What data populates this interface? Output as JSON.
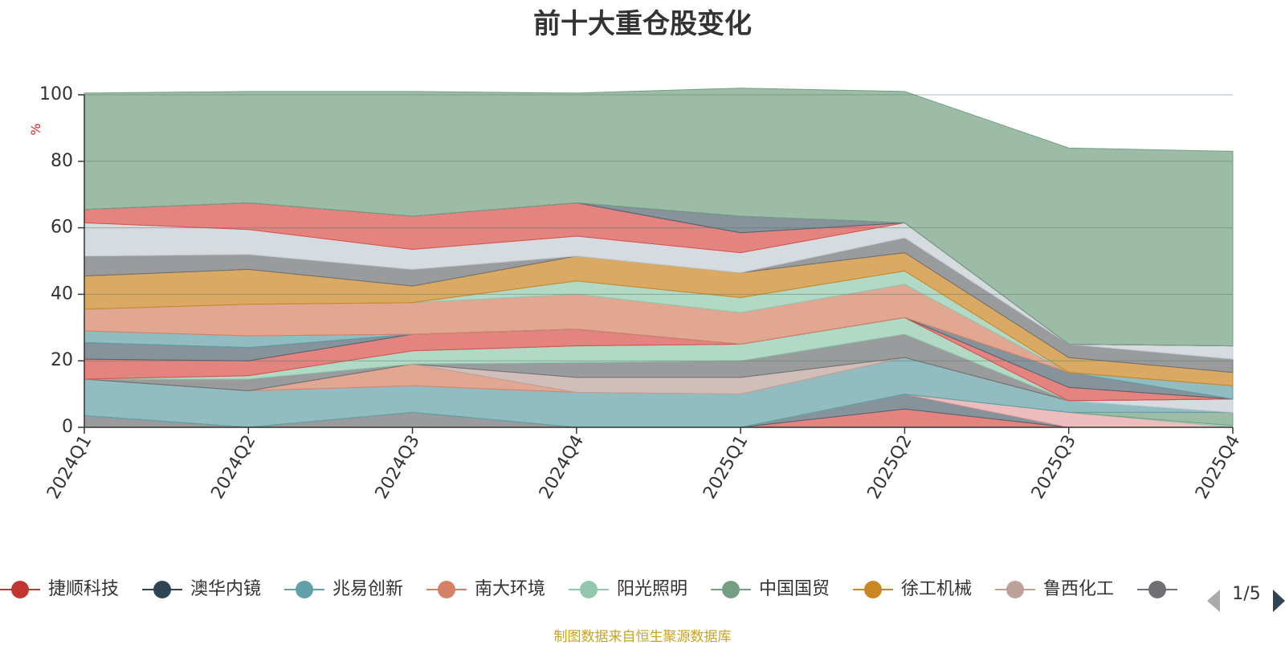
{
  "chart_data": {
    "type": "area",
    "title": "前十大重仓股变化",
    "ylabel": "%",
    "ylim": [
      0,
      100
    ],
    "yticks": [
      0,
      20,
      40,
      60,
      80,
      100
    ],
    "categories": [
      "2024Q1",
      "2024Q2",
      "2024Q3",
      "2024Q4",
      "2025Q1",
      "2025Q2",
      "2025Q3",
      "2025Q4"
    ],
    "grid": true,
    "legend_position": "bottom",
    "legend_page": "1/5",
    "series": [
      {
        "name": "",
        "color": "#6e7074",
        "values": [
          3.5,
          0,
          4.5,
          0,
          0,
          0,
          0,
          0
        ]
      },
      {
        "name": "",
        "color": "#d7504b",
        "values": [
          0,
          0,
          0,
          0,
          0,
          5.5,
          0,
          0
        ]
      },
      {
        "name": "",
        "color": "#546570",
        "values": [
          0,
          0,
          0,
          0,
          0,
          4.5,
          0,
          0
        ]
      },
      {
        "name": "",
        "color": "#e6a0a0",
        "values": [
          0,
          0,
          0,
          0,
          0,
          0,
          4.5,
          0
        ]
      },
      {
        "name": "",
        "color": "#91c7ae",
        "values": [
          0,
          0,
          0,
          0,
          0,
          0,
          0,
          0.5
        ]
      },
      {
        "name": "",
        "color": "#749f83",
        "values": [
          0,
          0,
          0,
          0,
          0,
          0,
          0,
          4.0
        ]
      },
      {
        "name": "",
        "color": "#61a0a8",
        "values": [
          11,
          11,
          8,
          10.5,
          10,
          11,
          3.5,
          0
        ]
      },
      {
        "name": "",
        "color": "#c4ccd3",
        "values": [
          0,
          0,
          0,
          0,
          0,
          0,
          0,
          4.0
        ]
      },
      {
        "name": "",
        "color": "#d48265",
        "values": [
          0,
          0,
          6.5,
          0,
          0,
          0,
          0,
          0
        ]
      },
      {
        "name": "",
        "color": "#bda29a",
        "values": [
          0,
          0,
          0,
          4.5,
          5,
          0,
          0,
          0
        ]
      },
      {
        "name": "",
        "color": "#6e7074",
        "values": [
          0,
          3.5,
          0,
          4.5,
          5,
          7,
          0,
          0
        ]
      },
      {
        "name": "",
        "color": "#91c7ae",
        "values": [
          0,
          1,
          4,
          5,
          5,
          5,
          0,
          0
        ]
      },
      {
        "name": "",
        "color": "#d7504b",
        "values": [
          6,
          4.5,
          5,
          5,
          0,
          0,
          4,
          0
        ]
      },
      {
        "name": "",
        "color": "#546570",
        "values": [
          5,
          4,
          0,
          0,
          0,
          0,
          4.5,
          0
        ]
      },
      {
        "name": "",
        "color": "#61a0a8",
        "values": [
          3.5,
          3.5,
          0,
          0,
          0,
          0,
          0,
          4.0
        ]
      },
      {
        "name": "",
        "color": "#d48265",
        "values": [
          6.5,
          9.5,
          9.5,
          10.5,
          9.5,
          10,
          0,
          0
        ]
      },
      {
        "name": "",
        "color": "#91c7ae",
        "values": [
          0,
          0,
          0,
          4,
          4.5,
          4,
          0,
          0
        ]
      },
      {
        "name": "",
        "color": "#ca8622",
        "values": [
          10,
          10.5,
          5,
          7.5,
          7.5,
          5.5,
          4.5,
          4.0
        ]
      },
      {
        "name": "",
        "color": "#6e7074",
        "values": [
          6,
          4.5,
          5,
          0,
          0,
          4.5,
          4.0,
          4.0
        ]
      },
      {
        "name": "",
        "color": "#c4ccd3",
        "values": [
          10,
          7.5,
          6,
          6,
          6,
          4.5,
          0,
          4.0
        ]
      },
      {
        "name": "",
        "color": "#d7504b",
        "values": [
          4,
          8,
          10,
          10,
          6,
          0,
          0,
          0
        ]
      },
      {
        "name": "",
        "color": "#546570",
        "values": [
          0,
          0,
          0,
          0,
          5,
          0,
          0,
          0
        ]
      },
      {
        "name": "",
        "color": "#749f83",
        "values": [
          35,
          33.5,
          37.5,
          33,
          38.5,
          39.5,
          59,
          58.5
        ]
      }
    ]
  },
  "legend": {
    "items": [
      {
        "label": "捷顺科技",
        "color": "#c23531"
      },
      {
        "label": "澳华内镜",
        "color": "#2f4554"
      },
      {
        "label": "兆易创新",
        "color": "#61a0a8"
      },
      {
        "label": "南大环境",
        "color": "#d48265"
      },
      {
        "label": "阳光照明",
        "color": "#91c7ae"
      },
      {
        "label": "中国国贸",
        "color": "#749f83"
      },
      {
        "label": "徐工机械",
        "color": "#ca8622"
      },
      {
        "label": "鲁西化工",
        "color": "#bda29a"
      },
      {
        "label": "",
        "color": "#6e7074"
      }
    ],
    "page": "1/5"
  },
  "footer": {
    "note": "制图数据来自恒生聚源数据库"
  }
}
